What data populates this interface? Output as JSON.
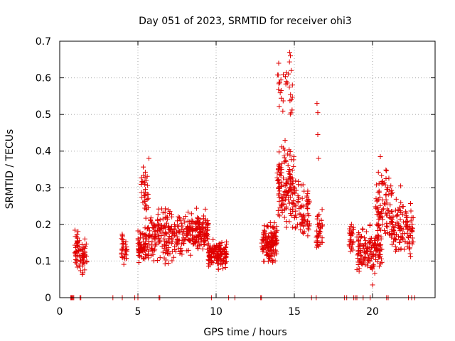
{
  "chart_data": {
    "type": "scatter",
    "title": "Day 051 of 2023, SRMTID for receiver ohi3",
    "xlabel": "GPS time / hours",
    "ylabel": "SRMTID / TECUs",
    "xlim": [
      0,
      24
    ],
    "ylim": [
      0,
      0.7
    ],
    "xticks": [
      0,
      5,
      10,
      15,
      20
    ],
    "yticks": [
      0,
      0.1,
      0.2,
      0.3,
      0.4,
      0.5,
      0.6,
      0.7
    ],
    "x_tick_labels": [
      "0",
      "5",
      "10",
      "15",
      "20"
    ],
    "y_tick_labels": [
      "0",
      "0.1",
      "0.2",
      "0.3",
      "0.4",
      "0.5",
      "0.6",
      "0.7"
    ],
    "grid": true,
    "marker": "+",
    "series_color": "#e00000",
    "series": [
      {
        "name": "ohi3",
        "clusters": [
          {
            "x_range": [
              0.95,
              1.25
            ],
            "y_range": [
              0.07,
              0.2
            ],
            "count": 40
          },
          {
            "x_range": [
              1.3,
              1.75
            ],
            "y_range": [
              0.05,
              0.18
            ],
            "count": 40
          },
          {
            "x_range": [
              3.95,
              4.3
            ],
            "y_range": [
              0.08,
              0.19
            ],
            "count": 35
          },
          {
            "x_range": [
              5.0,
              5.5
            ],
            "y_range": [
              0.08,
              0.2
            ],
            "count": 60
          },
          {
            "x_range": [
              5.2,
              5.7
            ],
            "y_range": [
              0.2,
              0.38
            ],
            "count": 35
          },
          {
            "x_range": [
              5.5,
              8.0
            ],
            "y_range": [
              0.07,
              0.26
            ],
            "count": 220
          },
          {
            "x_range": [
              8.0,
              9.5
            ],
            "y_range": [
              0.1,
              0.26
            ],
            "count": 160
          },
          {
            "x_range": [
              9.5,
              10.7
            ],
            "y_range": [
              0.07,
              0.17
            ],
            "count": 140
          },
          {
            "x_range": [
              12.9,
              13.9
            ],
            "y_range": [
              0.08,
              0.22
            ],
            "count": 140
          },
          {
            "x_range": [
              13.9,
              15.0
            ],
            "y_range": [
              0.15,
              0.45
            ],
            "count": 140
          },
          {
            "x_range": [
              13.9,
              14.9
            ],
            "y_range": [
              0.45,
              0.67
            ],
            "count": 30
          },
          {
            "x_range": [
              15.0,
              16.0
            ],
            "y_range": [
              0.1,
              0.35
            ],
            "count": 80
          },
          {
            "x_range": [
              16.4,
              16.8
            ],
            "y_range": [
              0.09,
              0.27
            ],
            "count": 40
          },
          {
            "x_range": [
              18.5,
              18.8
            ],
            "y_range": [
              0.1,
              0.23
            ],
            "count": 30
          },
          {
            "x_range": [
              19.0,
              20.6
            ],
            "y_range": [
              0.04,
              0.21
            ],
            "count": 150
          },
          {
            "x_range": [
              20.2,
              21.3
            ],
            "y_range": [
              0.12,
              0.38
            ],
            "count": 100
          },
          {
            "x_range": [
              21.2,
              22.6
            ],
            "y_range": [
              0.08,
              0.3
            ],
            "count": 120
          }
        ],
        "outliers": [
          {
            "x": 16.45,
            "y": 0.53
          },
          {
            "x": 16.5,
            "y": 0.505
          },
          {
            "x": 16.5,
            "y": 0.445
          },
          {
            "x": 14.0,
            "y": 0.64
          },
          {
            "x": 14.7,
            "y": 0.67
          },
          {
            "x": 14.75,
            "y": 0.66
          },
          {
            "x": 14.8,
            "y": 0.62
          },
          {
            "x": 16.55,
            "y": 0.38
          },
          {
            "x": 5.7,
            "y": 0.38
          },
          {
            "x": 20.5,
            "y": 0.385
          },
          {
            "x": 21.8,
            "y": 0.305
          },
          {
            "x": 20.0,
            "y": 0.035
          }
        ],
        "baseline_points_x": [
          0.7,
          0.75,
          0.8,
          0.85,
          0.9,
          1.3,
          1.35,
          3.4,
          4.0,
          4.8,
          5.0,
          6.35,
          6.4,
          9.7,
          10.8,
          11.2,
          12.85,
          12.9,
          16.1,
          16.4,
          18.2,
          18.35,
          18.8,
          18.9,
          19.0,
          19.4,
          19.85,
          20.9,
          21.0,
          22.3,
          22.5,
          22.7
        ]
      }
    ]
  }
}
